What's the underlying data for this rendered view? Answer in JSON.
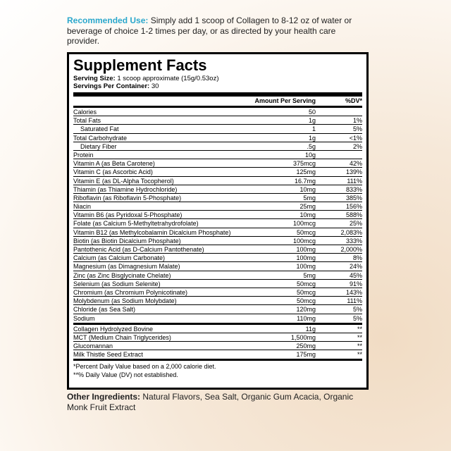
{
  "recommended_use": {
    "label": "Recommended Use:",
    "text": "Simply add 1 scoop of Collagen to 8-12 oz of water or beverage of choice 1-2 times per day, or as directed by your health care provider."
  },
  "facts": {
    "title": "Supplement Facts",
    "serving_size": {
      "label": "Serving Size:",
      "text": "1 scoop approximate (15g/0.53oz)"
    },
    "servings": {
      "label": "Servings Per Container:",
      "text": "30"
    },
    "header": {
      "amount": "Amount Per Serving",
      "dv": "%DV*"
    },
    "rows": [
      {
        "name": "Calories",
        "amount": "50"
      },
      {
        "name": "Total Fats",
        "amount": "1g",
        "dv": "1%"
      },
      {
        "name": "Saturated Fat",
        "amount": "1",
        "dv": "5%"
      },
      {
        "name": "Total Carbohydrate",
        "amount": "1g",
        "dv": "<1%"
      },
      {
        "name": "Dietary Fiber",
        "amount": ".5g",
        "dv": "2%"
      },
      {
        "name": "Protein",
        "amount": "10g"
      },
      {
        "name": "Vitamin A (as Beta Carotene)",
        "amount": "375mcg",
        "dv": "42%"
      },
      {
        "name": "Vitamin C (as Ascorbic Acid)",
        "amount": "125mg",
        "dv": "139%"
      },
      {
        "name": "Vitamin E (as DL-Alpha Tocopherol)",
        "amount": "16.7mg",
        "dv": "111%"
      },
      {
        "name": "Thiamin (as Thiamine Hydrochloride)",
        "amount": "10mg",
        "dv": "833%"
      },
      {
        "name": "Riboflavin (as Riboflavin 5-Phosphate)",
        "amount": "5mg",
        "dv": "385%"
      },
      {
        "name": "Niacin",
        "amount": "25mg",
        "dv": "156%"
      },
      {
        "name": "Vitamin B6 (as Pyridoxal 5-Phosphate)",
        "amount": "10mg",
        "dv": "588%"
      },
      {
        "name": "Folate (as Calcium 5-Methyltetrahydrofolate)",
        "amount": "100mcg",
        "dv": "25%"
      },
      {
        "name": "Vitamin B12 (as Methylcobalamin Dicalcium Phosphate)",
        "amount": "50mcg",
        "dv": "2,083%"
      },
      {
        "name": "Biotin (as Biotin Dicalcium Phosphate)",
        "amount": "100mcg",
        "dv": "333%"
      },
      {
        "name": "Pantothenic Acid (as D-Calcium Pantothenate)",
        "amount": "100mg",
        "dv": "2,000%"
      },
      {
        "name": "Calcium (as Calcium Carbonate)",
        "amount": "100mg",
        "dv": "8%"
      },
      {
        "name": "Magnesium (as Dimagnesium Malate)",
        "amount": "100mg",
        "dv": "24%"
      },
      {
        "name": "Zinc (as Zinc Bisglycinate Chelate)",
        "amount": "5mg",
        "dv": "45%"
      },
      {
        "name": "Selenium (as Sodium Selenite)",
        "amount": "50mcg",
        "dv": "91%"
      },
      {
        "name": "Chromium (as Chromium Polynicotinate)",
        "amount": "50mcg",
        "dv": "143%"
      },
      {
        "name": "Molybdenum (as Sodium Molybdate)",
        "amount": "50mcg",
        "dv": "111%"
      },
      {
        "name": "Chloride (as Sea Salt)",
        "amount": "120mg",
        "dv": "5%"
      },
      {
        "name": "Sodium",
        "amount": "110mg",
        "dv": "5%"
      }
    ],
    "other_rows": [
      {
        "name": "Collagen Hydrolyzed Bovine",
        "amount": "11g",
        "dv": "**"
      },
      {
        "name": "MCT (Medium Chain Triglycerides)",
        "amount": "1,500mg",
        "dv": "**"
      },
      {
        "name": "Glucomannan",
        "amount": "250mg",
        "dv": "**"
      },
      {
        "name": "Milk Thistle Seed Extract",
        "amount": "175mg",
        "dv": "**"
      }
    ],
    "footnotes": [
      "*Percent Daily Value based on a 2,000 calorie diet.",
      "**% Daily Value (DV) not established."
    ]
  },
  "other_ingredients": {
    "label": "Other Ingredients:",
    "text": "Natural Flavors, Sea Salt, Organic Gum Acacia, Organic Monk Fruit Extract"
  }
}
